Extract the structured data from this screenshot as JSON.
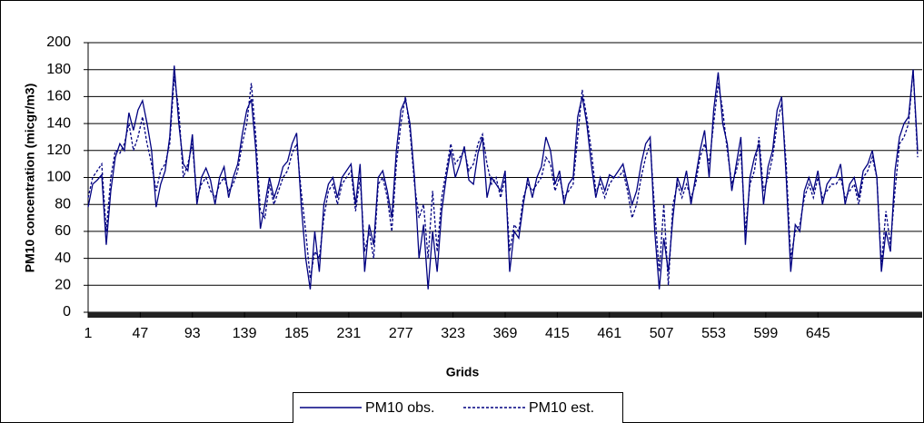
{
  "chart_data": {
    "type": "line",
    "x_label": "Grids",
    "y_label": "PM10 concentration (micgr/m3)",
    "x": [
      1,
      5,
      9,
      13,
      17,
      21,
      25,
      29,
      33,
      37,
      41,
      45,
      49,
      53,
      57,
      61,
      65,
      69,
      73,
      77,
      81,
      85,
      89,
      93,
      97,
      101,
      105,
      109,
      113,
      117,
      121,
      125,
      129,
      133,
      137,
      141,
      145,
      149,
      153,
      157,
      161,
      165,
      169,
      173,
      177,
      181,
      185,
      189,
      193,
      197,
      201,
      205,
      209,
      213,
      217,
      221,
      225,
      229,
      233,
      237,
      241,
      245,
      249,
      253,
      257,
      261,
      265,
      269,
      273,
      277,
      281,
      285,
      289,
      293,
      297,
      301,
      305,
      309,
      313,
      317,
      321,
      325,
      329,
      333,
      337,
      341,
      345,
      349,
      353,
      357,
      361,
      365,
      369,
      373,
      377,
      381,
      385,
      389,
      393,
      397,
      401,
      405,
      409,
      413,
      417,
      421,
      425,
      429,
      433,
      437,
      441,
      445,
      449,
      453,
      457,
      461,
      465,
      469,
      473,
      477,
      481,
      485,
      489,
      493,
      497,
      501,
      505,
      509,
      513,
      517,
      521,
      525,
      529,
      533,
      537,
      541,
      545,
      549,
      553,
      557,
      561,
      565,
      569,
      573,
      577,
      581,
      585,
      589,
      593,
      597,
      601,
      605,
      609,
      613,
      617,
      621,
      625,
      629,
      633,
      637,
      641,
      645,
      649,
      653,
      657,
      661,
      665,
      669,
      673,
      677,
      681,
      685,
      689,
      693,
      697,
      701,
      705,
      709,
      713,
      717,
      721,
      725,
      729,
      733
    ],
    "series": [
      {
        "name": "PM10 obs.",
        "color": "#000080",
        "dash": false,
        "values": [
          78,
          95,
          98,
          102,
          50,
          90,
          115,
          125,
          120,
          148,
          135,
          150,
          157,
          140,
          120,
          78,
          95,
          105,
          130,
          183,
          140,
          110,
          105,
          132,
          80,
          100,
          107,
          98,
          80,
          100,
          108,
          85,
          100,
          110,
          132,
          150,
          158,
          120,
          62,
          80,
          100,
          85,
          95,
          108,
          112,
          125,
          133,
          80,
          40,
          17,
          60,
          30,
          80,
          95,
          100,
          85,
          100,
          105,
          110,
          80,
          110,
          30,
          65,
          50,
          100,
          105,
          90,
          70,
          120,
          150,
          158,
          140,
          100,
          40,
          65,
          17,
          60,
          30,
          75,
          100,
          120,
          100,
          110,
          123,
          98,
          95,
          118,
          130,
          85,
          100,
          95,
          90,
          105,
          30,
          60,
          55,
          80,
          100,
          85,
          100,
          108,
          130,
          120,
          95,
          105,
          80,
          95,
          100,
          145,
          160,
          140,
          110,
          85,
          100,
          90,
          102,
          100,
          105,
          110,
          95,
          80,
          90,
          110,
          125,
          130,
          60,
          17,
          55,
          30,
          70,
          100,
          90,
          105,
          80,
          100,
          120,
          135,
          100,
          150,
          178,
          140,
          125,
          90,
          110,
          130,
          50,
          100,
          115,
          125,
          80,
          108,
          120,
          150,
          160,
          100,
          30,
          65,
          60,
          90,
          100,
          90,
          105,
          80,
          95,
          100,
          100,
          110,
          80,
          95,
          100,
          85,
          105,
          110,
          120,
          100,
          30,
          60,
          45,
          105,
          130,
          140,
          145,
          180,
          120
        ]
      },
      {
        "name": "PM10 est.",
        "color": "#000080",
        "dash": true,
        "values": [
          85,
          100,
          105,
          110,
          60,
          100,
          120,
          118,
          125,
          140,
          120,
          130,
          145,
          125,
          110,
          90,
          105,
          110,
          125,
          175,
          150,
          100,
          110,
          125,
          85,
          95,
          100,
          90,
          85,
          95,
          100,
          90,
          95,
          105,
          125,
          140,
          170,
          130,
          75,
          70,
          95,
          80,
          90,
          100,
          105,
          118,
          125,
          90,
          60,
          25,
          45,
          40,
          70,
          90,
          95,
          80,
          95,
          100,
          105,
          75,
          100,
          45,
          60,
          40,
          95,
          100,
          85,
          60,
          110,
          140,
          160,
          135,
          95,
          70,
          80,
          40,
          90,
          45,
          85,
          105,
          125,
          110,
          115,
          120,
          105,
          110,
          125,
          132,
          110,
          95,
          100,
          85,
          100,
          45,
          65,
          60,
          85,
          95,
          90,
          95,
          100,
          115,
          110,
          90,
          100,
          85,
          90,
          95,
          130,
          165,
          145,
          120,
          90,
          95,
          85,
          95,
          100,
          100,
          105,
          90,
          70,
          80,
          100,
          115,
          125,
          75,
          30,
          80,
          20,
          80,
          95,
          85,
          95,
          85,
          95,
          115,
          125,
          110,
          140,
          170,
          150,
          120,
          95,
          105,
          120,
          60,
          95,
          105,
          130,
          90,
          100,
          115,
          140,
          155,
          110,
          40,
          60,
          65,
          85,
          95,
          85,
          100,
          85,
          90,
          95,
          95,
          100,
          85,
          90,
          95,
          80,
          100,
          105,
          115,
          100,
          35,
          75,
          50,
          90,
          125,
          130,
          140,
          180,
          115
        ]
      }
    ],
    "xlim": [
      1,
      737
    ],
    "xticks": [
      1,
      47,
      93,
      139,
      185,
      231,
      277,
      323,
      369,
      415,
      461,
      507,
      553,
      599,
      645
    ],
    "ylim": [
      0,
      200
    ],
    "yticks": [
      0,
      20,
      40,
      60,
      80,
      100,
      120,
      140,
      160,
      180,
      200
    ],
    "grid": true,
    "legend": "bottom"
  }
}
